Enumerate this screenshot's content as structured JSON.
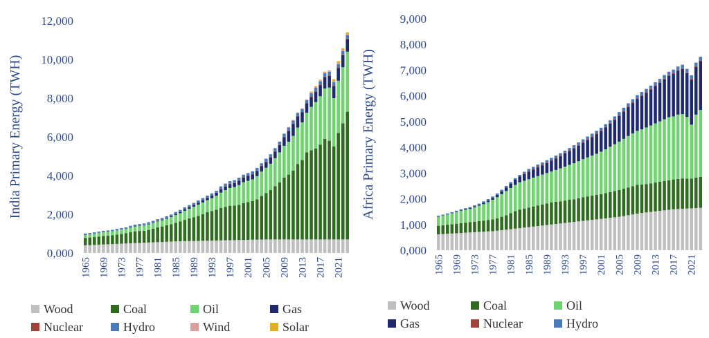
{
  "chart_data": [
    {
      "type": "stacked-bar",
      "y_label": "India Primary Energy (TWH)",
      "categories": [
        "1965",
        null,
        null,
        null,
        "1969",
        null,
        null,
        null,
        "1973",
        null,
        null,
        null,
        "1977",
        null,
        null,
        null,
        "1981",
        null,
        null,
        null,
        "1985",
        null,
        null,
        null,
        "1989",
        null,
        null,
        null,
        "1993",
        null,
        null,
        null,
        "1997",
        null,
        null,
        null,
        "2001",
        null,
        null,
        null,
        "2005",
        null,
        null,
        null,
        "2009",
        null,
        null,
        null,
        "2013",
        null,
        null,
        null,
        "2017",
        null,
        null,
        null,
        "2021",
        null,
        null
      ],
      "ylim": [
        0,
        12000
      ],
      "yticks": [
        {
          "value": 0,
          "label": "0,000"
        },
        {
          "value": 2000,
          "label": "2,000"
        },
        {
          "value": 4000,
          "label": "4,000"
        },
        {
          "value": 6000,
          "label": "6,000"
        },
        {
          "value": 8000,
          "label": "8,000"
        },
        {
          "value": 10000,
          "label": "10,000"
        },
        {
          "value": 12000,
          "label": "12,000"
        }
      ],
      "legend": "bottom",
      "series": [
        {
          "name": "Wood",
          "color": "#bfbfbf",
          "values": [
            400,
            410,
            420,
            430,
            440,
            450,
            460,
            470,
            480,
            490,
            500,
            510,
            520,
            530,
            540,
            550,
            560,
            570,
            580,
            590,
            600,
            605,
            610,
            615,
            620,
            625,
            630,
            635,
            640,
            645,
            650,
            655,
            660,
            665,
            670,
            675,
            680,
            685,
            690,
            695,
            700,
            700,
            700,
            700,
            700,
            700,
            700,
            700,
            700,
            700,
            700,
            700,
            700,
            700,
            700,
            700,
            700,
            700,
            700
          ]
        },
        {
          "name": "Coal",
          "color": "#2e6b1f",
          "values": [
            380,
            390,
            400,
            420,
            440,
            440,
            450,
            480,
            500,
            530,
            570,
            610,
            620,
            620,
            650,
            700,
            760,
            800,
            850,
            900,
            960,
            1020,
            1100,
            1170,
            1230,
            1290,
            1380,
            1470,
            1530,
            1590,
            1680,
            1720,
            1780,
            1780,
            1820,
            1900,
            1950,
            2000,
            2080,
            2250,
            2400,
            2550,
            2750,
            2950,
            3200,
            3350,
            3550,
            3900,
            4100,
            4500,
            4600,
            4700,
            4900,
            5200,
            5100,
            4800,
            5500,
            6000,
            6600
          ]
        },
        {
          "name": "Oil",
          "color": "#6fd46f",
          "values": [
            150,
            160,
            170,
            180,
            190,
            200,
            210,
            220,
            230,
            230,
            230,
            240,
            250,
            270,
            290,
            300,
            310,
            320,
            340,
            370,
            400,
            430,
            470,
            500,
            540,
            580,
            600,
            620,
            660,
            720,
            790,
            870,
            920,
            960,
            1020,
            1080,
            1100,
            1120,
            1200,
            1260,
            1300,
            1360,
            1450,
            1550,
            1640,
            1700,
            1800,
            1880,
            1950,
            2050,
            2250,
            2400,
            2500,
            2600,
            2750,
            2500,
            2700,
            2900,
            3100
          ]
        },
        {
          "name": "Gas",
          "color": "#1f2a6e",
          "values": [
            10,
            10,
            10,
            10,
            10,
            10,
            10,
            10,
            10,
            10,
            15,
            15,
            15,
            15,
            20,
            20,
            25,
            30,
            35,
            40,
            50,
            60,
            70,
            80,
            90,
            110,
            120,
            130,
            140,
            150,
            170,
            190,
            200,
            210,
            230,
            240,
            250,
            260,
            270,
            280,
            300,
            320,
            340,
            380,
            450,
            560,
            620,
            580,
            520,
            480,
            500,
            530,
            560,
            580,
            600,
            620,
            650,
            620,
            640
          ]
        },
        {
          "name": "Nuclear",
          "color": "#a0443a",
          "values": [
            5,
            5,
            5,
            5,
            5,
            5,
            5,
            5,
            5,
            5,
            10,
            10,
            10,
            10,
            10,
            10,
            10,
            10,
            10,
            10,
            10,
            10,
            10,
            10,
            10,
            10,
            10,
            10,
            10,
            10,
            20,
            20,
            20,
            20,
            20,
            20,
            20,
            20,
            20,
            20,
            20,
            20,
            20,
            20,
            20,
            20,
            20,
            20,
            20,
            20,
            40,
            40,
            40,
            40,
            40,
            40,
            40,
            40,
            40
          ]
        },
        {
          "name": "Hydro",
          "color": "#4a7ab8",
          "values": [
            60,
            60,
            60,
            60,
            60,
            60,
            60,
            60,
            60,
            60,
            80,
            80,
            80,
            80,
            80,
            80,
            80,
            80,
            80,
            80,
            100,
            100,
            100,
            100,
            100,
            100,
            100,
            100,
            100,
            100,
            130,
            130,
            130,
            130,
            130,
            130,
            130,
            130,
            130,
            130,
            150,
            150,
            150,
            150,
            150,
            150,
            150,
            150,
            150,
            150,
            170,
            170,
            170,
            170,
            170,
            170,
            170,
            170,
            170
          ]
        },
        {
          "name": "Wind",
          "color": "#d9a0a0",
          "values": [
            0,
            0,
            0,
            0,
            0,
            0,
            0,
            0,
            0,
            0,
            0,
            0,
            0,
            0,
            0,
            0,
            0,
            0,
            0,
            0,
            0,
            0,
            0,
            0,
            0,
            0,
            0,
            0,
            0,
            0,
            0,
            0,
            0,
            0,
            0,
            10,
            10,
            10,
            10,
            10,
            10,
            10,
            10,
            10,
            10,
            30,
            30,
            30,
            30,
            30,
            50,
            50,
            50,
            50,
            50,
            70,
            70,
            70,
            70
          ]
        },
        {
          "name": "Solar",
          "color": "#e0b020",
          "values": [
            0,
            0,
            0,
            0,
            0,
            0,
            0,
            0,
            0,
            0,
            0,
            0,
            0,
            0,
            0,
            0,
            0,
            0,
            0,
            0,
            0,
            0,
            0,
            0,
            0,
            0,
            0,
            0,
            0,
            0,
            0,
            0,
            0,
            0,
            0,
            0,
            0,
            0,
            0,
            0,
            0,
            0,
            0,
            0,
            0,
            5,
            5,
            5,
            5,
            5,
            30,
            30,
            30,
            30,
            30,
            80,
            80,
            80,
            80
          ]
        }
      ]
    },
    {
      "type": "stacked-bar",
      "y_label": "Africa Primary Energy (TWH)",
      "categories": [
        "1965",
        null,
        null,
        null,
        "1969",
        null,
        null,
        null,
        "1973",
        null,
        null,
        null,
        "1977",
        null,
        null,
        null,
        "1981",
        null,
        null,
        null,
        "1985",
        null,
        null,
        null,
        "1989",
        null,
        null,
        null,
        "1993",
        null,
        null,
        null,
        "1997",
        null,
        null,
        null,
        "2001",
        null,
        null,
        null,
        "2005",
        null,
        null,
        null,
        "2009",
        null,
        null,
        null,
        "2013",
        null,
        null,
        null,
        "2017",
        null,
        null,
        null,
        "2021",
        null,
        null
      ],
      "ylim": [
        0,
        9000
      ],
      "yticks": [
        {
          "value": 0,
          "label": "0,000"
        },
        {
          "value": 1000,
          "label": "1,000"
        },
        {
          "value": 2000,
          "label": "2,000"
        },
        {
          "value": 3000,
          "label": "3,000"
        },
        {
          "value": 4000,
          "label": "4,000"
        },
        {
          "value": 5000,
          "label": "5,000"
        },
        {
          "value": 6000,
          "label": "6,000"
        },
        {
          "value": 7000,
          "label": "7,000"
        },
        {
          "value": 8000,
          "label": "8,000"
        },
        {
          "value": 9000,
          "label": "9,000"
        }
      ],
      "legend": "bottom",
      "series": [
        {
          "name": "Wood",
          "color": "#bfbfbf",
          "values": [
            620,
            630,
            640,
            650,
            660,
            670,
            680,
            690,
            700,
            710,
            720,
            730,
            740,
            760,
            780,
            800,
            820,
            840,
            860,
            880,
            900,
            920,
            940,
            960,
            980,
            1000,
            1020,
            1040,
            1060,
            1080,
            1100,
            1120,
            1140,
            1160,
            1180,
            1200,
            1220,
            1240,
            1260,
            1280,
            1300,
            1330,
            1360,
            1390,
            1420,
            1450,
            1470,
            1490,
            1510,
            1530,
            1550,
            1570,
            1590,
            1600,
            1610,
            1620,
            1630,
            1640,
            1650
          ]
        },
        {
          "name": "Coal",
          "color": "#2e6b1f",
          "values": [
            330,
            340,
            350,
            360,
            370,
            380,
            390,
            400,
            410,
            420,
            430,
            440,
            460,
            480,
            520,
            560,
            620,
            680,
            720,
            740,
            760,
            780,
            800,
            820,
            840,
            860,
            860,
            860,
            870,
            880,
            880,
            900,
            920,
            930,
            940,
            950,
            960,
            980,
            1000,
            1020,
            1040,
            1060,
            1080,
            1100,
            1120,
            1100,
            1100,
            1110,
            1120,
            1130,
            1140,
            1150,
            1160,
            1170,
            1180,
            1160,
            1150,
            1180,
            1200
          ]
        },
        {
          "name": "Oil",
          "color": "#6fd46f",
          "values": [
            350,
            370,
            390,
            420,
            450,
            480,
            500,
            520,
            560,
            600,
            640,
            700,
            760,
            820,
            880,
            940,
            980,
            1020,
            1060,
            1080,
            1100,
            1120,
            1140,
            1160,
            1180,
            1200,
            1240,
            1280,
            1320,
            1360,
            1400,
            1440,
            1480,
            1520,
            1560,
            1600,
            1650,
            1700,
            1760,
            1820,
            1880,
            1940,
            2000,
            2050,
            2100,
            2150,
            2200,
            2250,
            2300,
            2350,
            2400,
            2450,
            2450,
            2500,
            2500,
            2400,
            2100,
            2450,
            2600
          ]
        },
        {
          "name": "Gas",
          "color": "#1f2a6e",
          "values": [
            5,
            5,
            10,
            10,
            15,
            20,
            25,
            30,
            35,
            40,
            50,
            60,
            70,
            90,
            110,
            140,
            170,
            200,
            230,
            260,
            290,
            310,
            340,
            360,
            390,
            420,
            450,
            480,
            510,
            540,
            570,
            600,
            640,
            680,
            720,
            760,
            800,
            850,
            900,
            950,
            1000,
            1060,
            1120,
            1180,
            1240,
            1300,
            1350,
            1400,
            1450,
            1500,
            1550,
            1600,
            1650,
            1700,
            1750,
            1700,
            1750,
            1850,
            1900
          ]
        },
        {
          "name": "Nuclear",
          "color": "#a0443a",
          "values": [
            0,
            0,
            0,
            0,
            0,
            0,
            0,
            0,
            0,
            0,
            0,
            0,
            0,
            0,
            0,
            0,
            0,
            0,
            0,
            30,
            30,
            30,
            30,
            30,
            30,
            30,
            30,
            30,
            30,
            30,
            30,
            30,
            30,
            30,
            30,
            30,
            30,
            30,
            30,
            30,
            30,
            30,
            30,
            30,
            30,
            30,
            30,
            30,
            30,
            30,
            30,
            30,
            30,
            30,
            30,
            30,
            30,
            30,
            30
          ]
        },
        {
          "name": "Hydro",
          "color": "#4a7ab8",
          "values": [
            40,
            40,
            40,
            40,
            40,
            40,
            40,
            40,
            40,
            40,
            60,
            60,
            60,
            60,
            60,
            60,
            60,
            60,
            60,
            60,
            80,
            80,
            80,
            80,
            80,
            80,
            80,
            80,
            80,
            80,
            100,
            100,
            100,
            100,
            100,
            100,
            100,
            100,
            100,
            100,
            120,
            120,
            120,
            120,
            120,
            120,
            120,
            120,
            120,
            120,
            140,
            140,
            140,
            140,
            140,
            140,
            140,
            140,
            140
          ]
        }
      ]
    }
  ]
}
